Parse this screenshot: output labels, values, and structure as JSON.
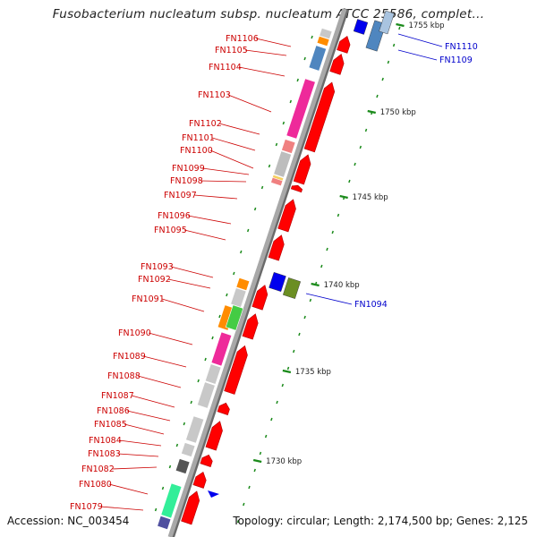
{
  "title": "Fusobacterium nucleatum subsp. nucleatum ATCC 25586, complet...",
  "footer": {
    "accession": "Accession: NC_003454",
    "summary": "Topology: circular; Length: 2,174,500 bp; Genes: 2,125"
  },
  "colors": {
    "backbone": "#a8a8a8",
    "gene_arrow": "#ff0000",
    "left_label": "#cc0000",
    "right_label": "#0000cc",
    "tick_green": "#1a8a1a"
  },
  "ticks": [
    {
      "label": "1755 kbp",
      "kbp": 1755
    },
    {
      "label": "1750 kbp",
      "kbp": 1750
    },
    {
      "label": "1745 kbp",
      "kbp": 1745
    },
    {
      "label": "1740 kbp",
      "kbp": 1740
    },
    {
      "label": "1735 kbp",
      "kbp": 1735
    },
    {
      "label": "1730 kbp",
      "kbp": 1730
    }
  ],
  "genes_left": [
    {
      "label": "FN1106"
    },
    {
      "label": "FN1105"
    },
    {
      "label": "FN1104"
    },
    {
      "label": "FN1103"
    },
    {
      "label": "FN1102"
    },
    {
      "label": "FN1101"
    },
    {
      "label": "FN1100"
    },
    {
      "label": "FN1099"
    },
    {
      "label": "FN1098"
    },
    {
      "label": "FN1097"
    },
    {
      "label": "FN1096"
    },
    {
      "label": "FN1095"
    },
    {
      "label": "FN1093"
    },
    {
      "label": "FN1092"
    },
    {
      "label": "FN1091"
    },
    {
      "label": "FN1090"
    },
    {
      "label": "FN1089"
    },
    {
      "label": "FN1088"
    },
    {
      "label": "FN1087"
    },
    {
      "label": "FN1086"
    },
    {
      "label": "FN1085"
    },
    {
      "label": "FN1084"
    },
    {
      "label": "FN1083"
    },
    {
      "label": "FN1082"
    },
    {
      "label": "FN1080"
    },
    {
      "label": "FN1079"
    }
  ],
  "genes_right": [
    {
      "label": "FN1110"
    },
    {
      "label": "FN1109"
    },
    {
      "label": "FN1094"
    }
  ]
}
